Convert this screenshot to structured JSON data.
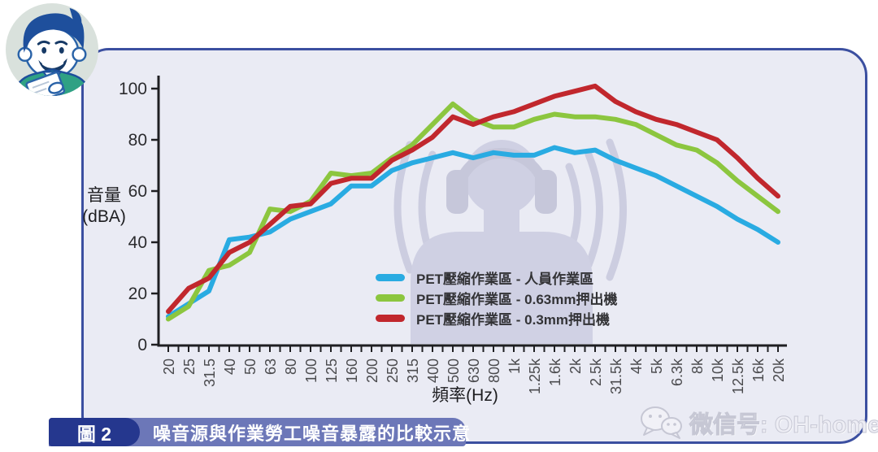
{
  "chart_data": {
    "type": "line",
    "title": "",
    "xlabel": "頻率(Hz)",
    "ylabel": "音量 (dBA)",
    "ylabel_lines": [
      "音量",
      "(dBA)"
    ],
    "x_categories": [
      "20",
      "25",
      "31.5",
      "40",
      "50",
      "63",
      "80",
      "100",
      "125",
      "160",
      "200",
      "250",
      "315",
      "400",
      "500",
      "630",
      "800",
      "1k",
      "1.25k",
      "1.6k",
      "2k",
      "2.5k",
      "31.5k",
      "4k",
      "5k",
      "6.3k",
      "8k",
      "10k",
      "12.5k",
      "16k",
      "20k"
    ],
    "y_ticks": [
      0,
      20,
      40,
      60,
      80,
      100
    ],
    "ylim": [
      0,
      105
    ],
    "grid": false,
    "legend_position": "inside-bottom-center",
    "series": [
      {
        "name": "PET壓縮作業區 - 人員作業區",
        "color": "#29abe2",
        "values": [
          11,
          16,
          21,
          41,
          42,
          44,
          49,
          52,
          55,
          62,
          62,
          68,
          71,
          73,
          75,
          73,
          75,
          74,
          74,
          77,
          75,
          76,
          72,
          69,
          66,
          62,
          58,
          54,
          49,
          45,
          40
        ]
      },
      {
        "name": "PET壓縮作業區 - 0.63mm押出機",
        "color": "#8cc63f",
        "values": [
          10,
          15,
          29,
          31,
          36,
          53,
          52,
          56,
          67,
          66,
          67,
          73,
          78,
          86,
          94,
          88,
          85,
          85,
          88,
          90,
          89,
          89,
          88,
          86,
          82,
          78,
          76,
          71,
          64,
          58,
          52
        ]
      },
      {
        "name": "PET壓縮作業區 - 0.3mm押出機",
        "color": "#c1272d",
        "values": [
          13,
          22,
          26,
          36,
          40,
          47,
          54,
          55,
          63,
          65,
          65,
          72,
          76,
          81,
          89,
          86,
          89,
          91,
          94,
          97,
          99,
          101,
          95,
          91,
          88,
          86,
          83,
          80,
          73,
          65,
          58
        ]
      }
    ]
  },
  "caption": {
    "badge": "圖 2",
    "title": "噪音源與作業勞工噪音暴露的比較示意"
  },
  "watermark": {
    "text": "微信号: OH-home"
  },
  "icons": {
    "avatar": "cartoon-man-with-clipboard",
    "chart_watermark": "worker-wearing-earmuffs-with-sound-waves",
    "bottom_right": "wechat-logo"
  },
  "colors": {
    "panel_bg": "#eaebf4",
    "panel_border": "#3b4fa0",
    "axis": "#1f1f22",
    "caption_bar": "#6c77b8",
    "caption_badge": "#25378e",
    "watermark_figure": "#cdcee2"
  }
}
